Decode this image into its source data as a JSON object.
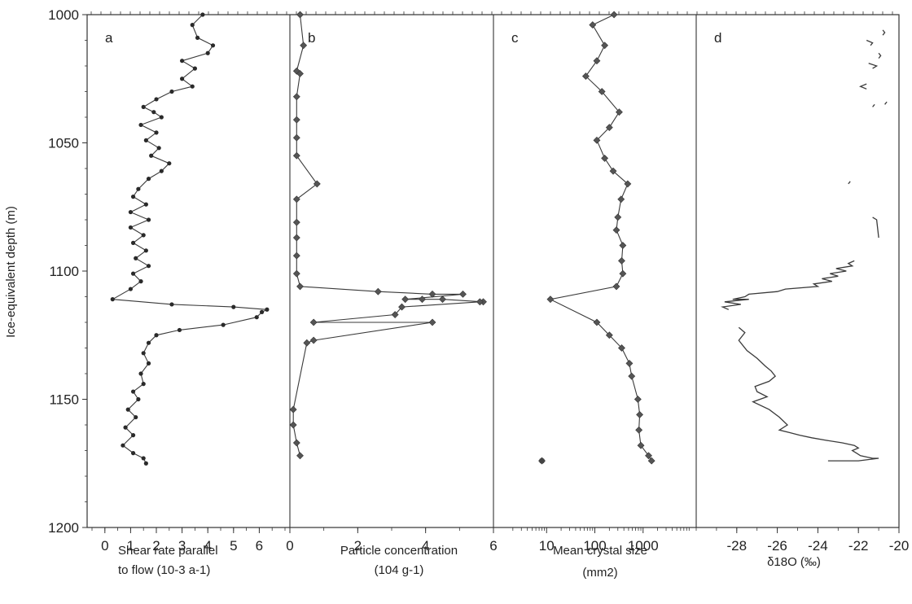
{
  "y_axis": {
    "label": "Ice-equivalent depth (m)",
    "ticks": [
      "1000",
      "1050",
      "1100",
      "1150",
      "1200"
    ],
    "tick_values": [
      1000,
      1050,
      1100,
      1150,
      1200
    ],
    "ylim": [
      1000,
      1200
    ],
    "inverted": true
  },
  "chart_data": [
    {
      "type": "line",
      "panel_label": "a",
      "xlabel_line1": "Shear rate parallel",
      "xlabel_line2": "to flow   (10-3 a-1)",
      "xlim": [
        -0.5,
        7
      ],
      "x_ticks": [
        "0",
        "1",
        "2",
        "3",
        "4",
        "5",
        "6"
      ],
      "x_tick_values": [
        0,
        1,
        2,
        3,
        4,
        5,
        6
      ],
      "markers": "dot",
      "series": [
        {
          "points": [
            [
              3.8,
              1000
            ],
            [
              3.4,
              1004
            ],
            [
              3.6,
              1009
            ],
            [
              4.2,
              1012
            ],
            [
              4.0,
              1015
            ],
            [
              3.0,
              1018
            ],
            [
              3.5,
              1021
            ],
            [
              3.0,
              1025
            ],
            [
              3.4,
              1028
            ],
            [
              2.6,
              1030
            ],
            [
              2.0,
              1033
            ],
            [
              1.5,
              1036
            ],
            [
              1.9,
              1038
            ],
            [
              2.2,
              1040
            ],
            [
              1.4,
              1043
            ],
            [
              2.0,
              1046
            ],
            [
              1.6,
              1049
            ],
            [
              2.1,
              1052
            ],
            [
              1.8,
              1055
            ],
            [
              2.5,
              1058
            ],
            [
              2.2,
              1061
            ],
            [
              1.7,
              1064
            ],
            [
              1.3,
              1068
            ],
            [
              1.1,
              1071
            ],
            [
              1.6,
              1074
            ],
            [
              1.0,
              1077
            ],
            [
              1.7,
              1080
            ],
            [
              1.0,
              1083
            ],
            [
              1.5,
              1086
            ],
            [
              1.1,
              1089
            ],
            [
              1.6,
              1092
            ],
            [
              1.2,
              1095
            ],
            [
              1.7,
              1098
            ],
            [
              1.1,
              1101
            ],
            [
              1.4,
              1104
            ],
            [
              1.0,
              1107
            ],
            [
              0.3,
              1111
            ],
            [
              2.6,
              1113
            ],
            [
              5.0,
              1114
            ],
            [
              6.3,
              1115
            ],
            [
              6.1,
              1116
            ],
            [
              5.9,
              1118
            ],
            [
              4.6,
              1121
            ],
            [
              2.9,
              1123
            ],
            [
              2.0,
              1125
            ],
            [
              1.7,
              1128
            ],
            [
              1.5,
              1132
            ],
            [
              1.7,
              1136
            ],
            [
              1.4,
              1140
            ],
            [
              1.5,
              1144
            ],
            [
              1.1,
              1147
            ],
            [
              1.3,
              1150
            ],
            [
              0.9,
              1154
            ],
            [
              1.2,
              1157
            ],
            [
              0.8,
              1161
            ],
            [
              1.1,
              1164
            ],
            [
              0.7,
              1168
            ],
            [
              1.1,
              1171
            ],
            [
              1.5,
              1173
            ],
            [
              1.6,
              1175
            ]
          ]
        }
      ]
    },
    {
      "type": "line",
      "panel_label": "b",
      "xlabel_line1": "Particle concentration",
      "xlabel_line2": "(104 g-1)",
      "xlim": [
        0,
        6
      ],
      "x_ticks": [
        "0",
        "2",
        "4",
        "6"
      ],
      "x_tick_values": [
        0,
        2,
        4,
        6
      ],
      "markers": "diamond",
      "series": [
        {
          "points": [
            [
              0.3,
              1000
            ],
            [
              0.4,
              1012
            ],
            [
              0.2,
              1022
            ],
            [
              0.3,
              1023
            ],
            [
              0.2,
              1032
            ],
            [
              0.2,
              1041
            ],
            [
              0.2,
              1048
            ],
            [
              0.2,
              1055
            ],
            [
              0.8,
              1066
            ],
            [
              0.2,
              1072
            ],
            [
              0.2,
              1081
            ],
            [
              0.2,
              1087
            ],
            [
              0.2,
              1094
            ],
            [
              0.2,
              1101
            ],
            [
              0.3,
              1106
            ],
            [
              2.6,
              1108
            ],
            [
              4.2,
              1109
            ],
            [
              5.1,
              1109
            ],
            [
              3.4,
              1111
            ],
            [
              3.9,
              1111
            ],
            [
              4.5,
              1111
            ],
            [
              5.7,
              1112
            ],
            [
              5.6,
              1112
            ],
            [
              3.3,
              1114
            ],
            [
              3.1,
              1117
            ],
            [
              0.7,
              1120
            ],
            [
              4.2,
              1120
            ],
            [
              0.7,
              1127
            ],
            [
              0.5,
              1128
            ],
            [
              0.1,
              1154
            ],
            [
              0.1,
              1160
            ],
            [
              0.2,
              1167
            ],
            [
              0.3,
              1172
            ]
          ]
        }
      ]
    },
    {
      "type": "line",
      "panel_label": "c",
      "xlabel_line1": "Mean crystal size",
      "xlabel_line2": "(mm2)",
      "xlim": [
        1,
        10000
      ],
      "log_x": true,
      "x_ticks": [
        "10",
        "100",
        "1000"
      ],
      "x_tick_values": [
        10,
        100,
        1000
      ],
      "markers": "diamond",
      "series": [
        {
          "points": [
            [
              250,
              1000
            ],
            [
              90,
              1004
            ],
            [
              160,
              1012
            ],
            [
              110,
              1018
            ],
            [
              65,
              1024
            ],
            [
              140,
              1030
            ],
            [
              320,
              1038
            ],
            [
              200,
              1044
            ],
            [
              110,
              1049
            ],
            [
              160,
              1056
            ],
            [
              240,
              1061
            ],
            [
              480,
              1066
            ],
            [
              350,
              1072
            ],
            [
              300,
              1079
            ],
            [
              280,
              1084
            ],
            [
              380,
              1090
            ],
            [
              360,
              1096
            ],
            [
              380,
              1101
            ],
            [
              280,
              1106
            ],
            [
              12,
              1111
            ],
            [
              110,
              1120
            ],
            [
              200,
              1125
            ],
            [
              360,
              1130
            ],
            [
              520,
              1136
            ],
            [
              580,
              1141
            ],
            [
              780,
              1150
            ],
            [
              850,
              1156
            ],
            [
              820,
              1162
            ],
            [
              900,
              1168
            ],
            [
              1300,
              1172
            ],
            [
              1500,
              1174
            ]
          ]
        },
        {
          "points": [
            [
              8,
              1174
            ]
          ],
          "isolated": true
        }
      ]
    },
    {
      "type": "line",
      "panel_label": "d",
      "xlabel_line1": "δ18O    (‰)",
      "xlim": [
        -30,
        -20
      ],
      "x_ticks": [
        "-28",
        "-26",
        "-24",
        "-22",
        "-20"
      ],
      "x_tick_values": [
        -28,
        -26,
        -24,
        -22,
        -20
      ],
      "markers": "none",
      "series": [
        {
          "points": [
            [
              -20.8,
              1006
            ],
            [
              -20.7,
              1007
            ],
            [
              -20.8,
              1008
            ]
          ]
        },
        {
          "points": [
            [
              -21.6,
              1010
            ],
            [
              -21.3,
              1011
            ],
            [
              -21.4,
              1012
            ]
          ]
        },
        {
          "points": [
            [
              -21.0,
              1015
            ],
            [
              -20.9,
              1016
            ],
            [
              -21.0,
              1017
            ]
          ]
        },
        {
          "points": [
            [
              -21.5,
              1019
            ],
            [
              -21.1,
              1020
            ],
            [
              -21.3,
              1021
            ]
          ]
        },
        {
          "points": [
            [
              -21.6,
              1027
            ],
            [
              -21.9,
              1028
            ],
            [
              -21.6,
              1029
            ]
          ]
        },
        {
          "points": [
            [
              -21.2,
              1035
            ],
            [
              -21.3,
              1036
            ]
          ]
        },
        {
          "points": [
            [
              -20.6,
              1034
            ],
            [
              -20.7,
              1035
            ]
          ]
        },
        {
          "points": [
            [
              -22.4,
              1065
            ],
            [
              -22.5,
              1066
            ]
          ]
        },
        {
          "points": [
            [
              -21.3,
              1079
            ],
            [
              -21.1,
              1080
            ],
            [
              -21.0,
              1087
            ]
          ]
        },
        {
          "points": [
            [
              -22.2,
              1096
            ],
            [
              -22.5,
              1097
            ],
            [
              -22.3,
              1098
            ],
            [
              -23.1,
              1099
            ],
            [
              -22.6,
              1100
            ],
            [
              -23.4,
              1101
            ],
            [
              -23.0,
              1102
            ],
            [
              -23.8,
              1103
            ],
            [
              -23.3,
              1104
            ],
            [
              -24.2,
              1105
            ],
            [
              -24.0,
              1106
            ],
            [
              -25.6,
              1107
            ],
            [
              -26.0,
              1108
            ],
            [
              -27.4,
              1109
            ],
            [
              -27.6,
              1110
            ],
            [
              -28.2,
              1111
            ],
            [
              -27.4,
              1111
            ],
            [
              -28.6,
              1112
            ],
            [
              -27.8,
              1113
            ],
            [
              -28.7,
              1114
            ],
            [
              -28.4,
              1115
            ]
          ]
        },
        {
          "points": [
            [
              -27.9,
              1122
            ],
            [
              -27.6,
              1124
            ],
            [
              -27.9,
              1127
            ],
            [
              -27.5,
              1131
            ],
            [
              -27.0,
              1134
            ],
            [
              -26.6,
              1137
            ],
            [
              -26.3,
              1139
            ],
            [
              -26.1,
              1141
            ],
            [
              -26.4,
              1143
            ],
            [
              -27.1,
              1145
            ],
            [
              -27.0,
              1147
            ],
            [
              -26.5,
              1149
            ],
            [
              -27.2,
              1151
            ],
            [
              -26.4,
              1154
            ],
            [
              -25.9,
              1157
            ],
            [
              -25.5,
              1160
            ],
            [
              -25.9,
              1162
            ],
            [
              -25.4,
              1163
            ],
            [
              -24.9,
              1164
            ],
            [
              -24.3,
              1165
            ],
            [
              -23.6,
              1166
            ],
            [
              -22.8,
              1167
            ],
            [
              -22.2,
              1168
            ],
            [
              -22.0,
              1169
            ],
            [
              -22.3,
              1170
            ],
            [
              -22.1,
              1171
            ],
            [
              -21.9,
              1172
            ],
            [
              -21.3,
              1173
            ],
            [
              -21.0,
              1173
            ],
            [
              -22.0,
              1174
            ],
            [
              -23.5,
              1174
            ]
          ]
        }
      ]
    }
  ]
}
